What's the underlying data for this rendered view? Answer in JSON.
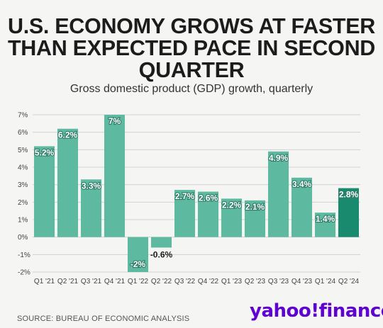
{
  "header": {
    "title_lines": [
      "U.S. ECONOMY GROWS AT FASTER",
      "THAN EXPECTED PACE IN SECOND",
      "QUARTER"
    ],
    "subtitle": "Gross domestic product (GDP) growth, quarterly"
  },
  "chart_data": {
    "type": "bar",
    "categories": [
      "Q1 '21",
      "Q2 '21",
      "Q3 '21",
      "Q4 '21",
      "Q1 '22",
      "Q2 '22",
      "Q3 '22",
      "Q4 '22",
      "Q1 '23",
      "Q2 '23",
      "Q3 '23",
      "Q4 '23",
      "Q1 '24",
      "Q2 '24"
    ],
    "values": [
      5.2,
      6.2,
      3.3,
      7,
      -2,
      -0.6,
      2.7,
      2.6,
      2.2,
      2.1,
      4.9,
      3.4,
      1.4,
      2.8
    ],
    "data_labels": [
      "5.2%",
      "6.2%",
      "3.3%",
      "7%",
      "-2%",
      "-0.6%",
      "2.7%",
      "2.6%",
      "2.2%",
      "2.1%",
      "4.9%",
      "3.4%",
      "1.4%",
      "2.8%"
    ],
    "yticks": [
      -2,
      -1,
      0,
      1,
      2,
      3,
      4,
      5,
      6,
      7
    ],
    "ytick_labels": [
      "-2%",
      "-1%",
      "0%",
      "1%",
      "2%",
      "3%",
      "4%",
      "5%",
      "6%",
      "7%"
    ],
    "ylim": [
      -2,
      7
    ],
    "grid": true,
    "highlight_index": 13,
    "colors": {
      "bar": "#5dbaa0",
      "highlight": "#1a8a6f",
      "grid": "#d2d2d2",
      "label_outline": "#2e7a66"
    },
    "title": "",
    "xlabel": "",
    "ylabel": ""
  },
  "footer": {
    "source": "SOURCE: BUREAU OF ECONOMIC ANALYSIS",
    "logo_text": "yahoo!finance"
  }
}
